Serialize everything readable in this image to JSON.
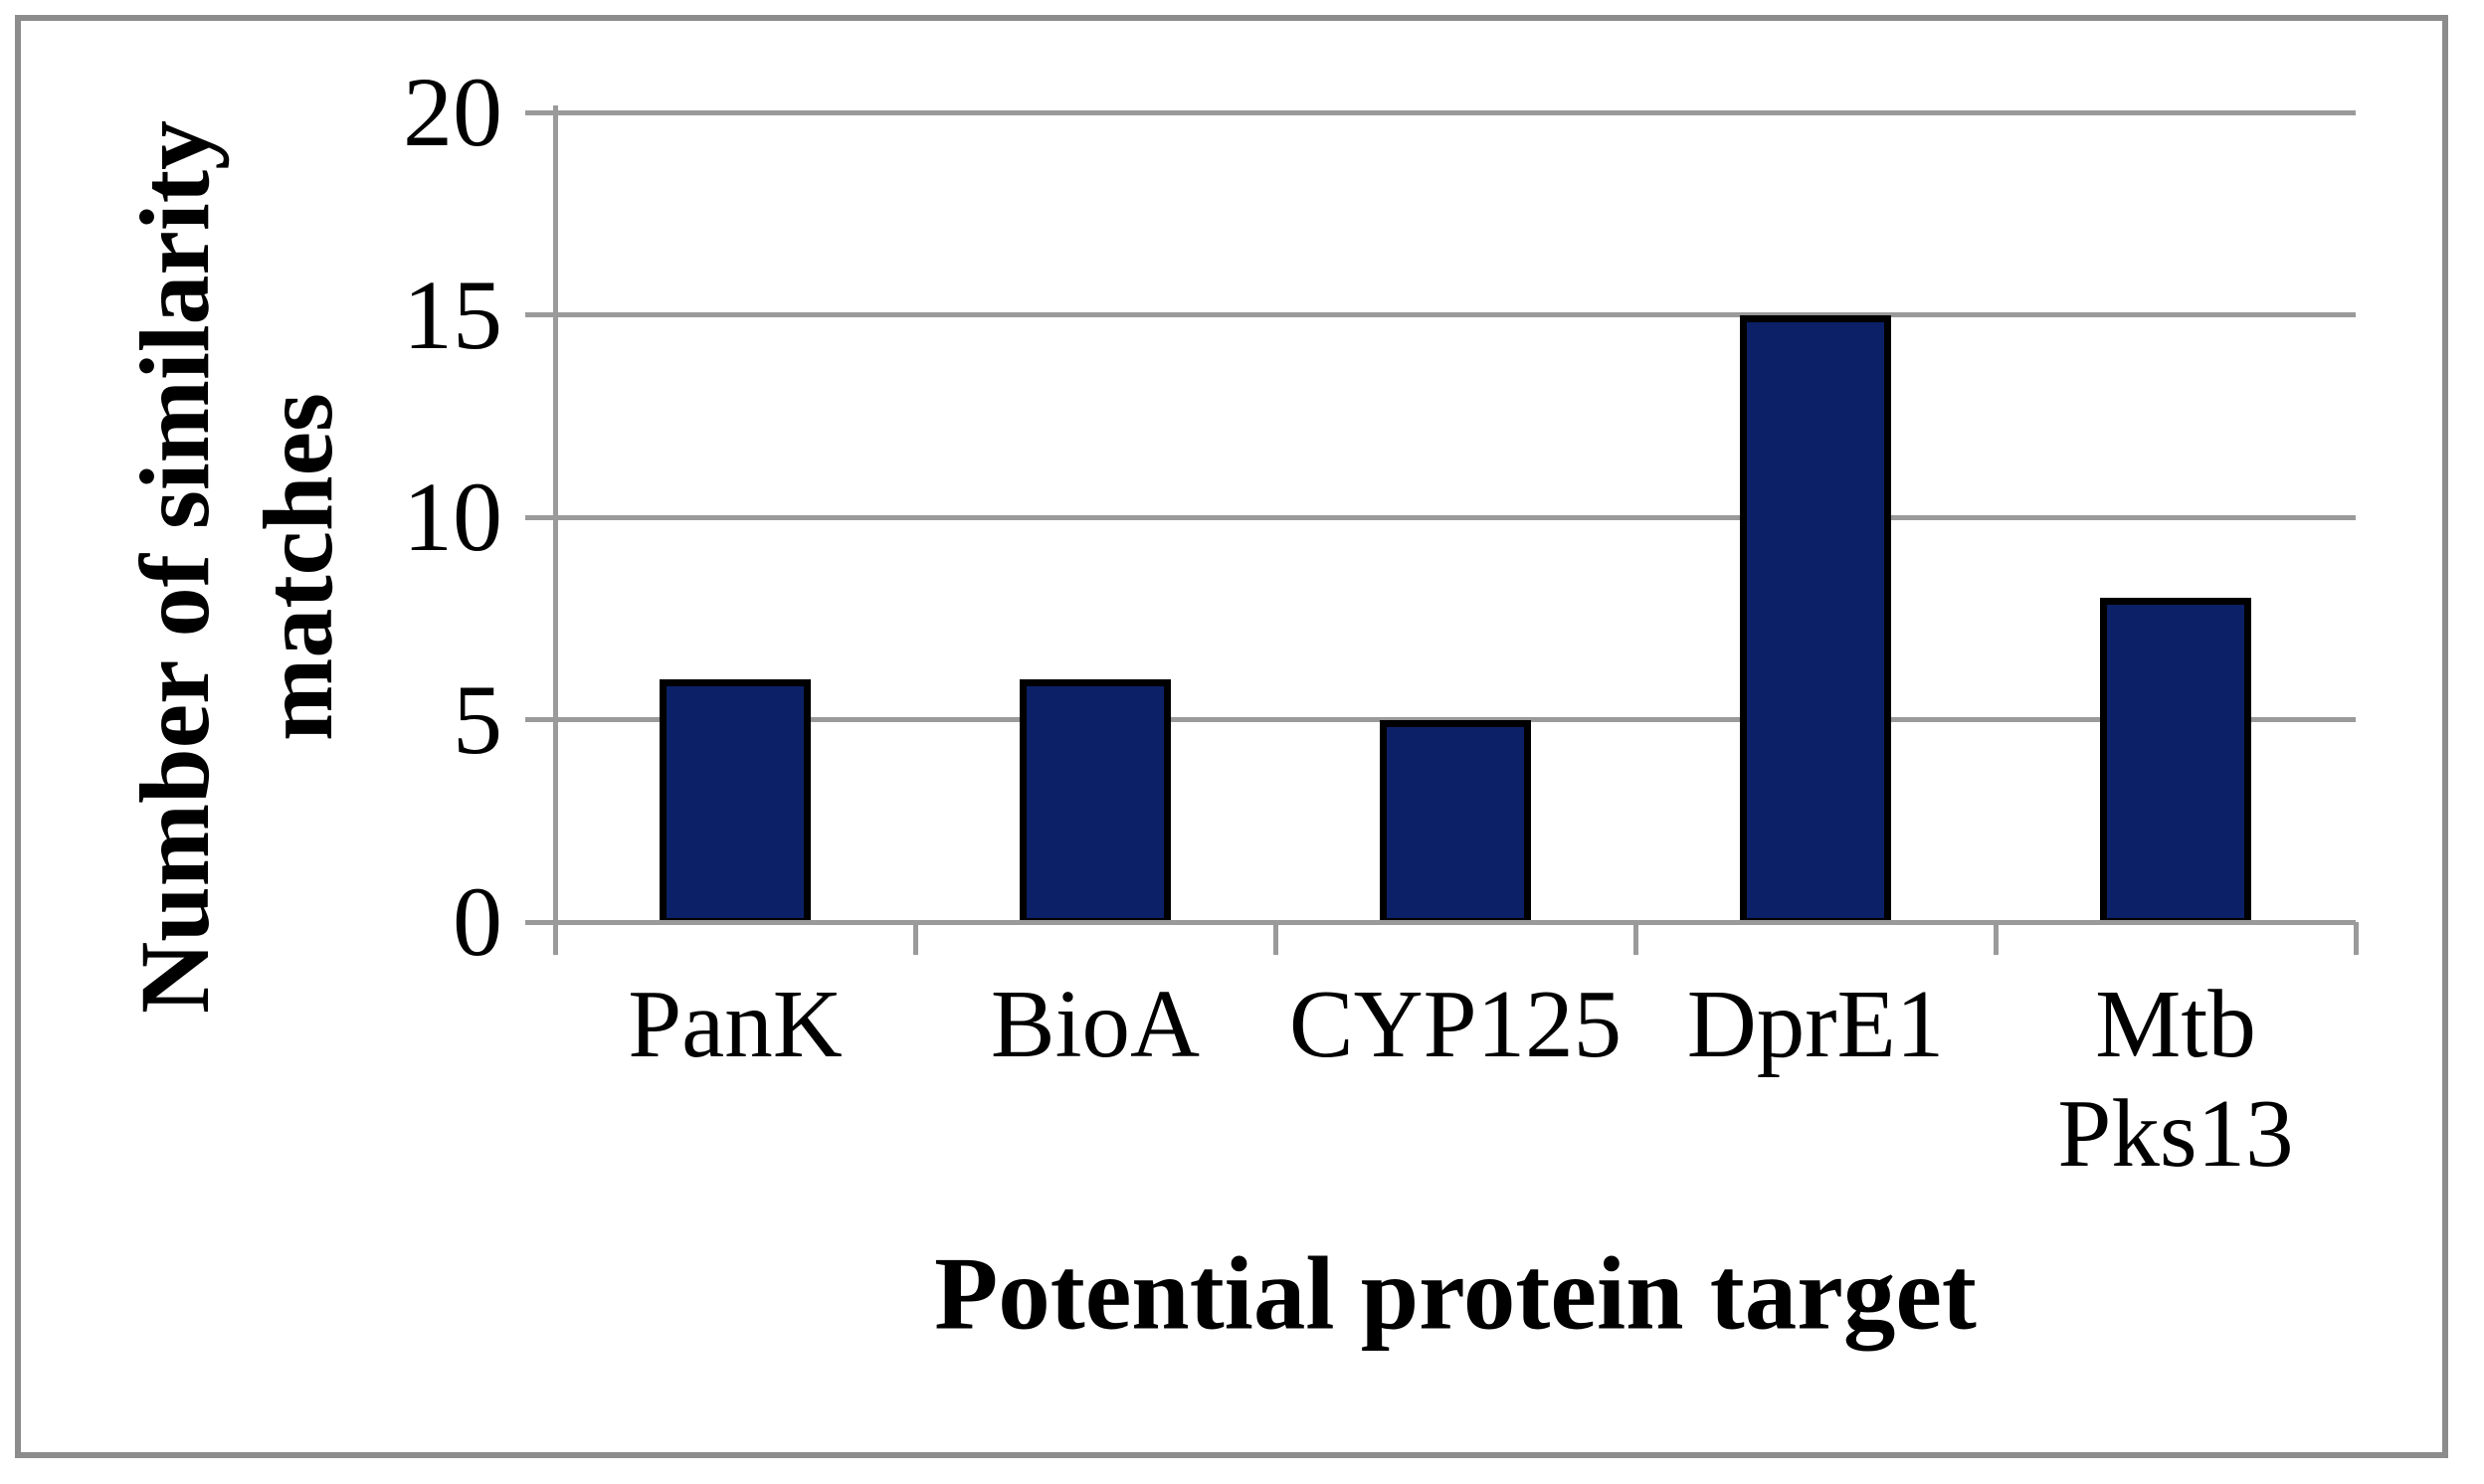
{
  "figure": {
    "background": "#ffffff",
    "frame_color": "#8c8c8c"
  },
  "chart_data": {
    "type": "bar",
    "title": "",
    "categories": [
      "PanK",
      "BioA",
      "CYP125",
      "DprE1",
      "Mtb Pks13"
    ],
    "values": [
      6,
      6,
      5,
      15,
      8
    ],
    "xlabel": "Potential protein target",
    "ylabel": "Number of similarity matches",
    "ylabel_lines": [
      "Number of similarity",
      "matches"
    ],
    "yticks": [
      0,
      5,
      10,
      15,
      20
    ],
    "ylim": [
      0,
      20
    ],
    "grid": true,
    "legend_position": "none",
    "bar_color": "#0b2066",
    "bar_border_color": "#000000",
    "grid_color": "#9a9a9a",
    "text_color": "#000000"
  }
}
